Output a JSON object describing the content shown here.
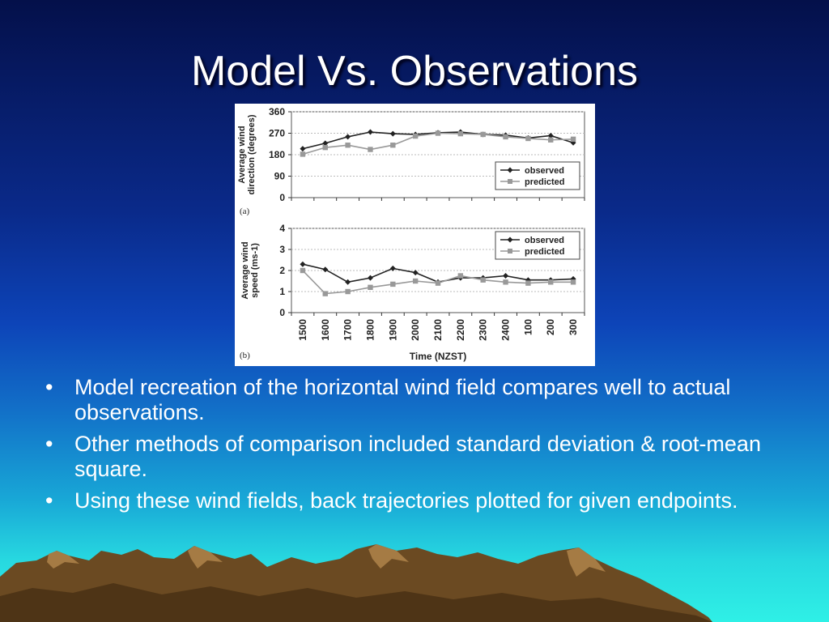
{
  "slide": {
    "title": "Model Vs. Observations",
    "bullets": [
      "Model recreation of the horizontal wind field compares well to actual observations.",
      "Other methods of comparison included standard deviation & root-mean square.",
      "Using these wind fields, back trajectories plotted for given endpoints."
    ],
    "bullet_glyph": "•"
  },
  "chart_data": [
    {
      "type": "line",
      "panel_label": "(a)",
      "ylabel": "Average wind direction (degrees)",
      "ylim": [
        0,
        360
      ],
      "yticks": [
        0,
        90,
        180,
        270,
        360
      ],
      "grid": true,
      "legend": "bottom-right",
      "categories": [
        "1500",
        "1600",
        "1700",
        "1800",
        "1900",
        "2000",
        "2100",
        "2200",
        "2300",
        "2400",
        "100",
        "200",
        "300"
      ],
      "series": [
        {
          "name": "observed",
          "marker": "diamond",
          "color": "#222222",
          "values": [
            205,
            228,
            255,
            275,
            268,
            265,
            272,
            275,
            265,
            262,
            250,
            260,
            230
          ]
        },
        {
          "name": "predicted",
          "marker": "square",
          "color": "#999999",
          "values": [
            182,
            210,
            220,
            202,
            220,
            258,
            270,
            268,
            265,
            255,
            248,
            242,
            245
          ]
        }
      ]
    },
    {
      "type": "line",
      "panel_label": "(b)",
      "ylabel": "Average wind speed (ms-1)",
      "xlabel": "Time (NZST)",
      "ylim": [
        0,
        4
      ],
      "yticks": [
        0,
        1,
        2,
        3,
        4
      ],
      "grid": true,
      "legend": "top-right",
      "categories": [
        "1500",
        "1600",
        "1700",
        "1800",
        "1900",
        "2000",
        "2100",
        "2200",
        "2300",
        "2400",
        "100",
        "200",
        "300"
      ],
      "series": [
        {
          "name": "observed",
          "marker": "diamond",
          "color": "#222222",
          "values": [
            2.3,
            2.05,
            1.45,
            1.65,
            2.1,
            1.9,
            1.45,
            1.65,
            1.65,
            1.75,
            1.55,
            1.55,
            1.6
          ]
        },
        {
          "name": "predicted",
          "marker": "square",
          "color": "#999999",
          "values": [
            2.0,
            0.9,
            1.0,
            1.2,
            1.35,
            1.5,
            1.4,
            1.75,
            1.55,
            1.45,
            1.4,
            1.45,
            1.45
          ]
        }
      ]
    }
  ]
}
